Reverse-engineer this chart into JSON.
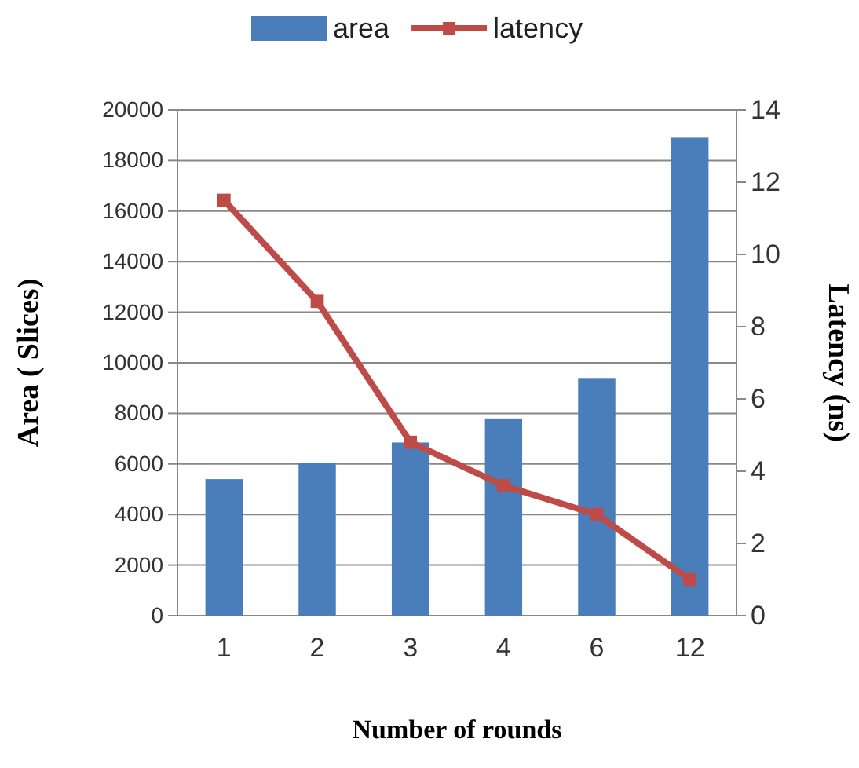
{
  "chart_data": {
    "type": "bar",
    "xlabel": "Number of rounds",
    "ylabel": "Area ( Slices)",
    "y2label": "Latency (ns)",
    "categories": [
      "1",
      "2",
      "3",
      "4",
      "6",
      "12"
    ],
    "series": [
      {
        "name": "area",
        "color": "#4a7ebb",
        "values": [
          5400,
          6050,
          6850,
          7800,
          9400,
          18900
        ]
      },
      {
        "name": "latency",
        "type": "line",
        "axis": "y2",
        "color": "#be4b48",
        "marker": "square",
        "values": [
          11.5,
          8.7,
          4.8,
          3.6,
          2.8,
          1.0
        ]
      }
    ],
    "ylim": [
      0,
      20000
    ],
    "yticks": [
      0,
      2000,
      4000,
      6000,
      8000,
      10000,
      12000,
      14000,
      16000,
      18000,
      20000
    ],
    "y2lim": [
      0,
      14
    ],
    "y2ticks": [
      0,
      2,
      4,
      6,
      8,
      10,
      12,
      14
    ],
    "grid": "y",
    "legend": "top"
  }
}
